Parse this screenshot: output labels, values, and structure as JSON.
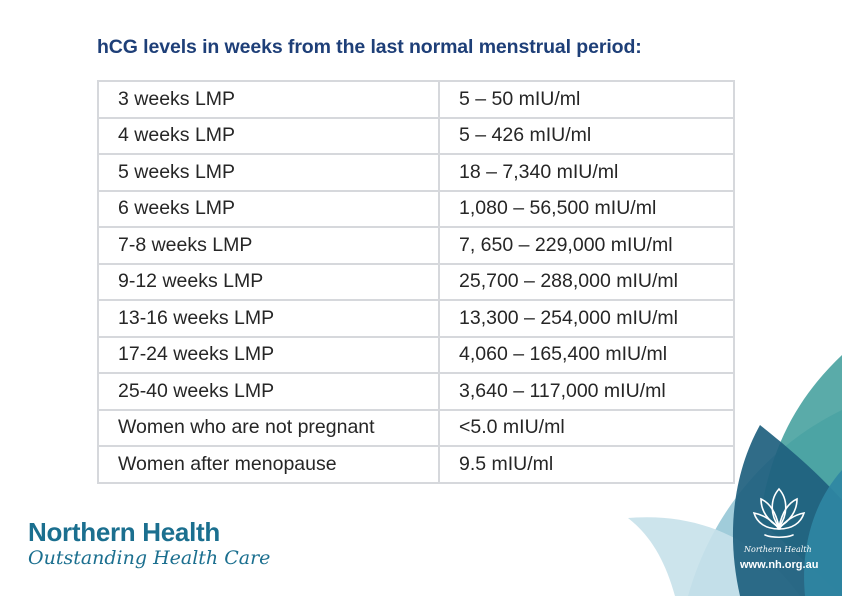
{
  "title": "hCG levels in weeks from the last normal menstrual period:",
  "table": {
    "rows": [
      [
        "3 weeks LMP",
        "5 – 50 mIU/ml"
      ],
      [
        "4 weeks LMP",
        "5 – 426 mIU/ml"
      ],
      [
        "5 weeks LMP",
        "18 – 7,340 mIU/ml"
      ],
      [
        "6 weeks LMP",
        "1,080 – 56,500 mIU/ml"
      ],
      [
        "7-8 weeks LMP",
        "7, 650 – 229,000 mIU/ml"
      ],
      [
        "9-12 weeks LMP",
        "25,700 – 288,000 mIU/ml"
      ],
      [
        "13-16 weeks LMP",
        "13,300 – 254,000 mIU/ml"
      ],
      [
        "17-24 weeks LMP",
        "4,060 – 165,400 mIU/ml"
      ],
      [
        "25-40 weeks LMP",
        "3,640 – 117,000 mIU/ml"
      ],
      [
        "Women who are not pregnant",
        "<5.0 mIU/ml"
      ],
      [
        "Women after menopause",
        "9.5 mIU/ml"
      ]
    ]
  },
  "brand": {
    "name": "Northern Health",
    "tagline": "Outstanding Health Care",
    "logo_text": "Northern Health",
    "url": "www.nh.org.au"
  },
  "colors": {
    "title": "#1e3f78",
    "brand": "#1b6f8f",
    "leaf_dark": "#1e5f7e",
    "leaf_mid": "#2f86a3",
    "leaf_teal": "#3d9c9a",
    "leaf_light": "#8fc3d3"
  }
}
